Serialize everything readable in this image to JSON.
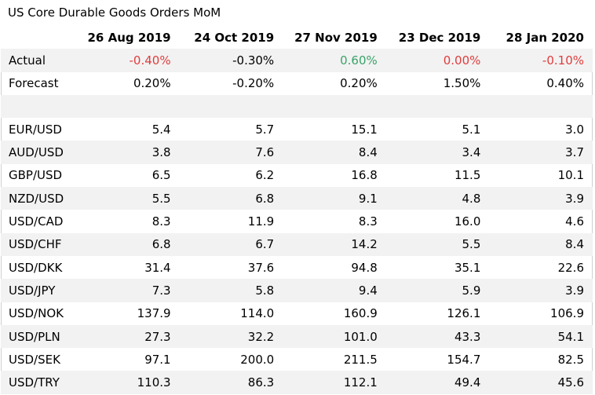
{
  "chart_data": {
    "type": "table",
    "title": "US Core Durable Goods Orders MoM",
    "columns": [
      "26 Aug 2019",
      "24 Oct 2019",
      "27 Nov 2019",
      "23 Dec 2019",
      "28 Jan 2020"
    ],
    "rows": [
      {
        "label": "Actual",
        "values": [
          "-0.40%",
          "-0.30%",
          "0.60%",
          "0.00%",
          "-0.10%"
        ],
        "colors": [
          "#e03c3c",
          "#000000",
          "#3aa36a",
          "#e03c3c",
          "#e03c3c"
        ]
      },
      {
        "label": "Forecast",
        "values": [
          "0.20%",
          "-0.20%",
          "0.20%",
          "1.50%",
          "0.40%"
        ]
      },
      {
        "label": "",
        "values": [
          "",
          "",
          "",
          "",
          ""
        ]
      },
      {
        "label": "EUR/USD",
        "values": [
          "5.4",
          "5.7",
          "15.1",
          "5.1",
          "3.0"
        ]
      },
      {
        "label": "AUD/USD",
        "values": [
          "3.8",
          "7.6",
          "8.4",
          "3.4",
          "3.7"
        ]
      },
      {
        "label": "GBP/USD",
        "values": [
          "6.5",
          "6.2",
          "16.8",
          "11.5",
          "10.1"
        ]
      },
      {
        "label": "NZD/USD",
        "values": [
          "5.5",
          "6.8",
          "9.1",
          "4.8",
          "3.9"
        ]
      },
      {
        "label": "USD/CAD",
        "values": [
          "8.3",
          "11.9",
          "8.3",
          "16.0",
          "4.6"
        ]
      },
      {
        "label": "USD/CHF",
        "values": [
          "6.8",
          "6.7",
          "14.2",
          "5.5",
          "8.4"
        ]
      },
      {
        "label": "USD/DKK",
        "values": [
          "31.4",
          "37.6",
          "94.8",
          "35.1",
          "22.6"
        ]
      },
      {
        "label": "USD/JPY",
        "values": [
          "7.3",
          "5.8",
          "9.4",
          "5.9",
          "3.9"
        ]
      },
      {
        "label": "USD/NOK",
        "values": [
          "137.9",
          "114.0",
          "160.9",
          "126.1",
          "106.9"
        ]
      },
      {
        "label": "USD/PLN",
        "values": [
          "27.3",
          "32.2",
          "101.0",
          "43.3",
          "54.1"
        ]
      },
      {
        "label": "USD/SEK",
        "values": [
          "97.1",
          "200.0",
          "211.5",
          "154.7",
          "82.5"
        ]
      },
      {
        "label": "USD/TRY",
        "values": [
          "110.3",
          "86.3",
          "112.1",
          "49.4",
          "45.6"
        ]
      }
    ]
  }
}
